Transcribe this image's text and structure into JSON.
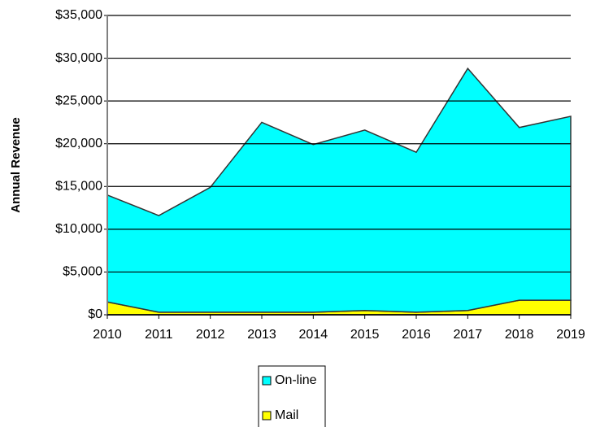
{
  "chart_data": {
    "type": "stacked_area",
    "y_label": "Annual Revenue",
    "x": [
      2010,
      2011,
      2012,
      2013,
      2014,
      2015,
      2016,
      2017,
      2018,
      2019
    ],
    "xlim": [
      2010,
      2019
    ],
    "series": [
      {
        "name": "Mail",
        "color": "#ffff00",
        "values": [
          1500,
          300,
          300,
          300,
          300,
          500,
          300,
          500,
          1700,
          1700
        ]
      },
      {
        "name": "On-line",
        "color": "#00ffff",
        "values": [
          12500,
          11300,
          14600,
          22200,
          19600,
          21100,
          18700,
          28300,
          20200,
          21500
        ]
      }
    ],
    "ylim": [
      0,
      35000
    ],
    "yticks": [
      {
        "value": 0,
        "label": "$0"
      },
      {
        "value": 5000,
        "label": "$5,000"
      },
      {
        "value": 10000,
        "label": "$10,000"
      },
      {
        "value": 15000,
        "label": "$15,000"
      },
      {
        "value": 20000,
        "label": "$20,000"
      },
      {
        "value": 25000,
        "label": "$25,000"
      },
      {
        "value": 30000,
        "label": "$30,000"
      },
      {
        "value": 35000,
        "label": "$35,000"
      }
    ],
    "grid": true,
    "legend": "bottom"
  }
}
